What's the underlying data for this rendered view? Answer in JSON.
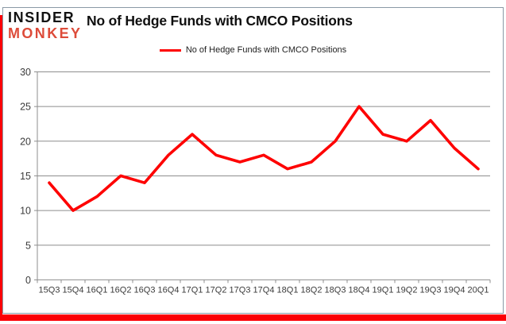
{
  "logo": {
    "line1": "INSIDER",
    "line2": "MONKEY"
  },
  "header": {
    "title": "No of Hedge Funds with CMCO Positions"
  },
  "legend": {
    "label": "No of Hedge Funds with CMCO Positions"
  },
  "colors": {
    "series_line": "#fe0000",
    "logo_text": "#121212",
    "logo_accent": "#dd4b39",
    "gridline": "#8e8e8e",
    "axis_line": "#8e8e8e",
    "axis_text": "#3b3b3b",
    "image_border": "#8a99a6",
    "accent_strip": "#fb0006"
  },
  "chart_data": {
    "type": "line",
    "title": "No of Hedge Funds with CMCO Positions",
    "categories": [
      "15Q3",
      "15Q4",
      "16Q1",
      "16Q2",
      "16Q3",
      "16Q4",
      "17Q1",
      "17Q2",
      "17Q3",
      "17Q4",
      "18Q1",
      "18Q2",
      "18Q3",
      "18Q4",
      "19Q1",
      "19Q2",
      "19Q3",
      "19Q4",
      "20Q1"
    ],
    "series": [
      {
        "name": "No of Hedge Funds with CMCO Positions",
        "values": [
          14,
          10,
          12,
          15,
          14,
          18,
          21,
          18,
          17,
          18,
          16,
          17,
          20,
          25,
          21,
          20,
          23,
          19,
          16
        ]
      }
    ],
    "xlabel": "",
    "ylabel": "",
    "ylim": [
      0,
      30
    ],
    "yticks": [
      0,
      5,
      10,
      15,
      20,
      25,
      30
    ],
    "grid": true,
    "legend_position": "top-center"
  }
}
